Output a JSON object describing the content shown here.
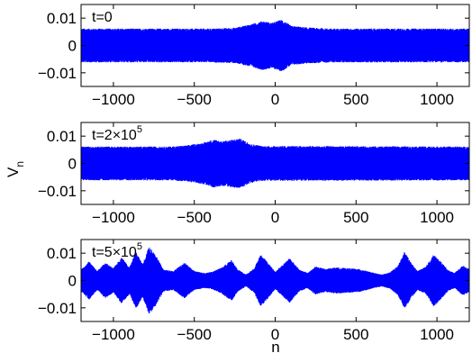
{
  "chart_data": {
    "type": "line",
    "shared_xlabel": "n",
    "shared_ylabel": "V",
    "shared_ylabel_subscript": "n",
    "line_color": "#0000ff",
    "panels": [
      {
        "annotation": "t=0",
        "annotation_superscript": "",
        "xlim": [
          -1200,
          1200
        ],
        "ylim": [
          -0.015,
          0.015
        ],
        "x_ticks": [
          -1000,
          -500,
          0,
          500,
          1000
        ],
        "x_tick_labels": [
          "−1000",
          "−500",
          "0",
          "500",
          "1000"
        ],
        "y_ticks": [
          0.01,
          0,
          -0.01
        ],
        "y_tick_labels": [
          "0.01",
          "0",
          "−0.01"
        ],
        "series": [
          {
            "description": "background carrier with localized wave packet near the center",
            "background_envelope": 0.0062,
            "envelope": [
              [
                -1200,
                0.0062
              ],
              [
                -400,
                0.0062
              ],
              [
                -250,
                0.0065
              ],
              [
                -150,
                0.0078
              ],
              [
                -80,
                0.009
              ],
              [
                -20,
                0.0083
              ],
              [
                40,
                0.0095
              ],
              [
                100,
                0.0072
              ],
              [
                200,
                0.0066
              ],
              [
                350,
                0.0062
              ],
              [
                1200,
                0.0062
              ]
            ]
          }
        ]
      },
      {
        "annotation": "t=2×10",
        "annotation_superscript": "5",
        "xlim": [
          -1200,
          1200
        ],
        "ylim": [
          -0.015,
          0.015
        ],
        "x_ticks": [
          -1000,
          -500,
          0,
          500,
          1000
        ],
        "x_tick_labels": [
          "−1000",
          "−500",
          "0",
          "500",
          "1000"
        ],
        "y_ticks": [
          0.01,
          0,
          -0.01
        ],
        "y_tick_labels": [
          "0.01",
          "0",
          "−0.01"
        ],
        "series": [
          {
            "description": "wave packet moved left",
            "background_envelope": 0.0062,
            "envelope": [
              [
                -1200,
                0.0062
              ],
              [
                -650,
                0.0062
              ],
              [
                -550,
                0.0066
              ],
              [
                -450,
                0.0075
              ],
              [
                -380,
                0.0088
              ],
              [
                -330,
                0.0082
              ],
              [
                -280,
                0.0086
              ],
              [
                -220,
                0.0092
              ],
              [
                -150,
                0.0072
              ],
              [
                -80,
                0.0064
              ],
              [
                1200,
                0.0062
              ]
            ]
          }
        ]
      },
      {
        "annotation": "t=5×10",
        "annotation_superscript": "5",
        "xlim": [
          -1200,
          1200
        ],
        "ylim": [
          -0.015,
          0.015
        ],
        "x_ticks": [
          -1000,
          -500,
          0,
          500,
          1000
        ],
        "x_tick_labels": [
          "−1000",
          "−500",
          "0",
          "500",
          "1000"
        ],
        "y_ticks": [
          0.01,
          0,
          -0.01
        ],
        "y_tick_labels": [
          "0.01",
          "0",
          "−0.01"
        ],
        "series": [
          {
            "description": "modulated breathing pattern",
            "background_envelope": 0.004,
            "envelope": [
              [
                -1200,
                0.004
              ],
              [
                -1150,
                0.007
              ],
              [
                -1100,
                0.0035
              ],
              [
                -1050,
                0.0065
              ],
              [
                -1000,
                0.0045
              ],
              [
                -950,
                0.0085
              ],
              [
                -900,
                0.005
              ],
              [
                -860,
                0.0105
              ],
              [
                -820,
                0.006
              ],
              [
                -780,
                0.0125
              ],
              [
                -740,
                0.0095
              ],
              [
                -690,
                0.004
              ],
              [
                -630,
                0.0035
              ],
              [
                -560,
                0.0065
              ],
              [
                -500,
                0.0035
              ],
              [
                -440,
                0.0028
              ],
              [
                -390,
                0.0032
              ],
              [
                -330,
                0.0048
              ],
              [
                -270,
                0.0075
              ],
              [
                -230,
                0.004
              ],
              [
                -180,
                0.0022
              ],
              [
                -130,
                0.0045
              ],
              [
                -90,
                0.0095
              ],
              [
                -50,
                0.007
              ],
              [
                0,
                0.0032
              ],
              [
                40,
                0.0055
              ],
              [
                90,
                0.0082
              ],
              [
                150,
                0.004
              ],
              [
                200,
                0.0028
              ],
              [
                250,
                0.0052
              ],
              [
                310,
                0.0042
              ],
              [
                370,
                0.0048
              ],
              [
                450,
                0.0045
              ],
              [
                520,
                0.0042
              ],
              [
                560,
                0.0036
              ],
              [
                610,
                0.0028
              ],
              [
                660,
                0.0022
              ],
              [
                710,
                0.003
              ],
              [
                760,
                0.0055
              ],
              [
                800,
                0.0105
              ],
              [
                840,
                0.0065
              ],
              [
                880,
                0.0035
              ],
              [
                930,
                0.005
              ],
              [
                980,
                0.0095
              ],
              [
                1020,
                0.0072
              ],
              [
                1070,
                0.0038
              ],
              [
                1110,
                0.0028
              ],
              [
                1160,
                0.0055
              ],
              [
                1200,
                0.0042
              ]
            ]
          }
        ]
      }
    ]
  }
}
